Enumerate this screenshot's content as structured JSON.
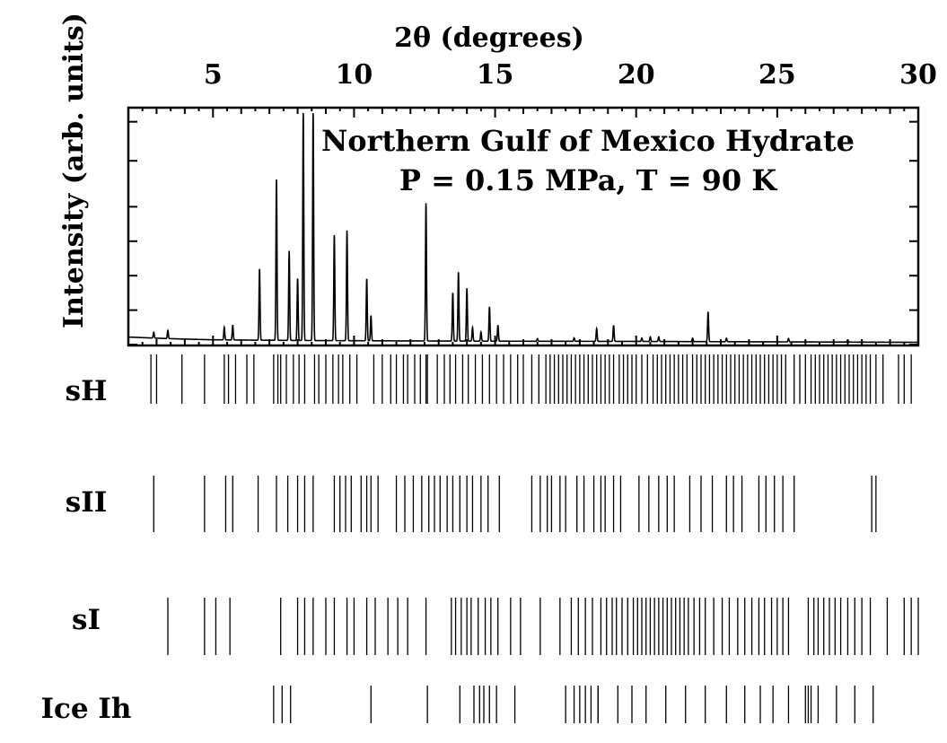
{
  "chart_data": {
    "type": "line",
    "title_lines": [
      "Northern Gulf of Mexico Hydrate",
      "P = 0.15 MPa, T = 90 K"
    ],
    "xlabel": "2θ (degrees)",
    "ylabel": "Intensity (arb. units)",
    "xlim": [
      2,
      30
    ],
    "ylim": [
      0,
      100
    ],
    "x_ticks": [
      5,
      10,
      15,
      20,
      25,
      30
    ],
    "x_tick_labels": [
      "5",
      "10",
      "15",
      "20",
      "25",
      "30"
    ],
    "grid": false,
    "baseline": [
      [
        2.0,
        2.5
      ],
      [
        3.0,
        2.0
      ],
      [
        4.0,
        1.6
      ],
      [
        5.0,
        1.3
      ],
      [
        6.0,
        1.2
      ],
      [
        7.0,
        1.1
      ],
      [
        8.0,
        1.0
      ],
      [
        10.0,
        0.9
      ],
      [
        12.0,
        0.8
      ],
      [
        15.0,
        0.7
      ],
      [
        20.0,
        0.6
      ],
      [
        25.0,
        0.4
      ],
      [
        30.0,
        0.2
      ]
    ],
    "peaks": [
      [
        2.9,
        2.5
      ],
      [
        3.4,
        3.5
      ],
      [
        5.4,
        5.5
      ],
      [
        5.7,
        6.5
      ],
      [
        6.65,
        31
      ],
      [
        7.25,
        70
      ],
      [
        7.7,
        39
      ],
      [
        8.0,
        27
      ],
      [
        8.2,
        100
      ],
      [
        8.55,
        100
      ],
      [
        9.3,
        46
      ],
      [
        9.75,
        48
      ],
      [
        10.45,
        27
      ],
      [
        10.6,
        11
      ],
      [
        12.55,
        60
      ],
      [
        13.5,
        21
      ],
      [
        13.7,
        30
      ],
      [
        14.0,
        23
      ],
      [
        14.2,
        6
      ],
      [
        14.5,
        4
      ],
      [
        14.8,
        15
      ],
      [
        15.1,
        7
      ],
      [
        16.5,
        1.2
      ],
      [
        17.8,
        1.5
      ],
      [
        18.6,
        5.5
      ],
      [
        19.2,
        7
      ],
      [
        20.2,
        1.5
      ],
      [
        20.5,
        2
      ],
      [
        20.8,
        2
      ],
      [
        22.0,
        1.5
      ],
      [
        22.55,
        13
      ],
      [
        23.2,
        1.5
      ],
      [
        25.4,
        1.5
      ],
      [
        27.5,
        1
      ]
    ],
    "reference_patterns": [
      {
        "name": "sH",
        "positions": [
          2.8,
          3.0,
          3.9,
          4.7,
          5.4,
          5.55,
          5.8,
          6.2,
          6.45,
          7.15,
          7.3,
          7.4,
          7.6,
          7.85,
          8.05,
          8.25,
          8.6,
          8.75,
          9.0,
          9.25,
          9.45,
          9.6,
          9.85,
          10.1,
          10.7,
          11.0,
          11.3,
          11.5,
          11.75,
          11.9,
          12.15,
          12.35,
          12.55,
          12.6,
          12.95,
          13.2,
          13.4,
          13.6,
          13.85,
          14.05,
          14.3,
          14.55,
          14.8,
          15.05,
          15.3,
          15.55,
          15.8,
          16.0,
          16.3,
          16.55,
          16.8,
          16.95,
          17.1,
          17.25,
          17.4,
          17.55,
          17.7,
          17.85,
          18.0,
          18.15,
          18.3,
          18.45,
          18.6,
          18.75,
          18.9,
          19.05,
          19.2,
          19.4,
          19.55,
          19.7,
          19.85,
          20.0,
          20.2,
          20.4,
          20.6,
          20.75,
          20.9,
          21.05,
          21.2,
          21.35,
          21.5,
          21.65,
          21.8,
          22.0,
          22.15,
          22.3,
          22.45,
          22.6,
          22.75,
          22.9,
          23.05,
          23.2,
          23.35,
          23.5,
          23.65,
          23.8,
          23.95,
          24.1,
          24.25,
          24.4,
          24.55,
          24.7,
          24.85,
          25.0,
          25.15,
          25.3,
          25.6,
          25.8,
          26.0,
          26.2,
          26.35,
          26.5,
          26.65,
          26.8,
          26.95,
          27.1,
          27.25,
          27.4,
          27.55,
          27.7,
          27.85,
          28.0,
          28.15,
          28.3,
          28.5,
          28.75,
          29.3,
          29.5,
          29.75
        ]
      },
      {
        "name": "sII",
        "positions": [
          2.9,
          4.7,
          5.45,
          5.7,
          6.6,
          7.25,
          7.65,
          8.0,
          8.25,
          8.55,
          9.3,
          9.5,
          9.7,
          9.9,
          10.25,
          10.45,
          10.6,
          10.85,
          11.5,
          11.8,
          12.1,
          12.4,
          12.65,
          12.85,
          13.05,
          13.3,
          13.5,
          13.75,
          14.0,
          14.2,
          14.5,
          14.75,
          15.15,
          16.3,
          16.6,
          16.85,
          17.0,
          17.3,
          17.5,
          17.9,
          18.15,
          18.5,
          18.75,
          18.9,
          19.2,
          19.45,
          20.1,
          20.45,
          20.8,
          21.1,
          21.35,
          21.9,
          22.3,
          22.7,
          23.2,
          23.45,
          23.75,
          24.35,
          24.6,
          24.9,
          25.2,
          25.6,
          28.35,
          28.5
        ]
      },
      {
        "name": "sI",
        "positions": [
          3.4,
          4.7,
          5.1,
          5.6,
          7.4,
          8.0,
          8.25,
          8.55,
          9.0,
          9.3,
          9.75,
          10.0,
          10.45,
          10.75,
          11.2,
          11.55,
          11.9,
          12.55,
          13.45,
          13.6,
          13.8,
          14.0,
          14.15,
          14.4,
          14.65,
          14.85,
          15.1,
          15.55,
          15.9,
          16.6,
          17.3,
          17.7,
          17.95,
          18.2,
          18.45,
          18.75,
          18.95,
          19.15,
          19.3,
          19.5,
          19.7,
          19.9,
          20.05,
          20.2,
          20.35,
          20.5,
          20.65,
          20.8,
          20.95,
          21.1,
          21.25,
          21.4,
          21.55,
          21.7,
          21.85,
          22.05,
          22.25,
          22.45,
          22.75,
          23.05,
          23.3,
          23.6,
          23.85,
          24.1,
          24.35,
          24.55,
          24.8,
          25.0,
          25.2,
          25.4,
          26.1,
          26.3,
          26.45,
          26.65,
          26.85,
          27.05,
          27.25,
          27.5,
          27.75,
          28.0,
          28.3,
          28.9,
          29.5,
          29.75,
          30.0
        ]
      },
      {
        "name": "Ice Ih",
        "positions": [
          7.15,
          7.45,
          7.75,
          10.6,
          12.6,
          13.75,
          14.25,
          14.45,
          14.6,
          14.8,
          15.05,
          15.7,
          17.5,
          17.8,
          18.0,
          18.2,
          18.4,
          18.65,
          18.65,
          19.35,
          19.85,
          20.35,
          21.05,
          21.75,
          22.45,
          23.2,
          23.85,
          24.4,
          24.85,
          25.4,
          26.0,
          26.1,
          26.2,
          26.45,
          27.1,
          27.75,
          28.4
        ]
      }
    ]
  }
}
